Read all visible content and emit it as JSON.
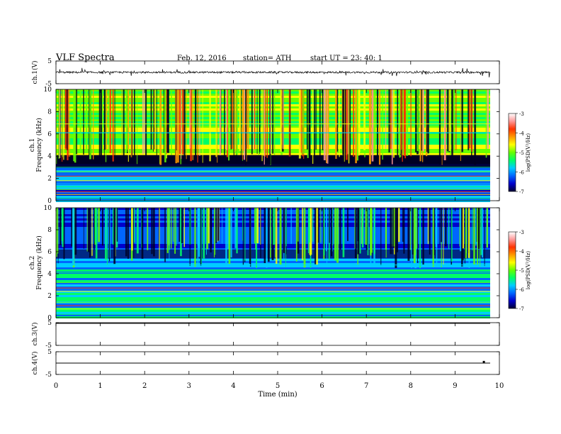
{
  "header": {
    "title": "VLF Spectra",
    "date": "Feb. 12, 2016",
    "station": "station= ATH",
    "start": "start  UT =   23: 40: 1"
  },
  "chart_data": [
    {
      "type": "line",
      "name": "ch1-waveform",
      "ylabel": "ch.1(V)",
      "ylim": [
        -5,
        5
      ],
      "yticks": [
        "5",
        "-5"
      ],
      "baseline": 0,
      "xlim": [
        0,
        10
      ]
    },
    {
      "type": "heatmap",
      "name": "ch1-spectrogram",
      "ylabel_lines": [
        "ch.1",
        "Frequency (kHz)"
      ],
      "ylim": [
        0,
        10
      ],
      "yticks": [
        "0",
        "2",
        "4",
        "6",
        "8",
        "10"
      ],
      "xlim": [
        0,
        10
      ],
      "colorbar": {
        "label": "log(PSD(V²/Hz)",
        "range": [
          -7,
          -3
        ],
        "ticks": [
          "-3",
          "-4",
          "-5",
          "-6",
          "-7"
        ]
      }
    },
    {
      "type": "heatmap",
      "name": "ch2-spectrogram",
      "ylabel_lines": [
        "ch.2",
        "Frequency (kHz)"
      ],
      "ylim": [
        0,
        10
      ],
      "yticks": [
        "0",
        "2",
        "4",
        "6",
        "8",
        "10"
      ],
      "xlim": [
        0,
        10
      ],
      "colorbar": {
        "label": "log(PSD(V²/Hz)",
        "range": [
          -7,
          -3
        ],
        "ticks": [
          "-3",
          "-4",
          "-5",
          "-6",
          "-7"
        ]
      }
    },
    {
      "type": "line",
      "name": "ch3-waveform",
      "ylabel": "ch.3(V)",
      "ylim": [
        -5,
        5
      ],
      "yticks": [
        "5",
        "-5"
      ],
      "baseline": 5,
      "xlim": [
        0,
        10
      ]
    },
    {
      "type": "line",
      "name": "ch4-waveform",
      "ylabel": "ch.4(V)",
      "ylim": [
        -5,
        5
      ],
      "yticks": [
        "5",
        "-5"
      ],
      "baseline": 0,
      "marker": {
        "x": 9.65,
        "y": 0.5
      },
      "xlim": [
        0,
        10
      ]
    }
  ],
  "xaxis": {
    "label": "Time  (min)",
    "ticks": [
      "0",
      "1",
      "2",
      "3",
      "4",
      "5",
      "6",
      "7",
      "8",
      "9",
      "10"
    ]
  },
  "colors": {
    "scale": [
      "#000033",
      "#0000cc",
      "#0066ff",
      "#00ccff",
      "#00ff66",
      "#66ff00",
      "#ffff00",
      "#ff9900",
      "#ff3300",
      "#ff9999",
      "#ffffff"
    ]
  }
}
